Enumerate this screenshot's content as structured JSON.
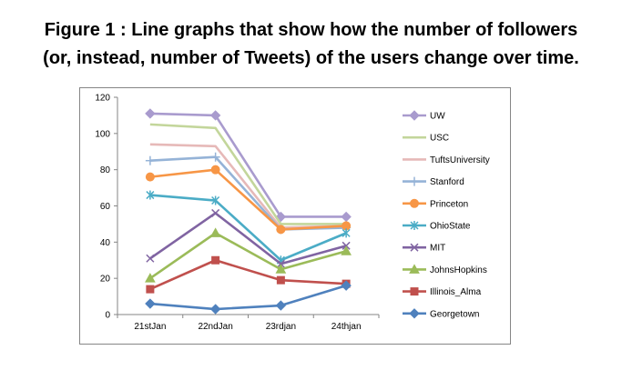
{
  "caption": {
    "line1": "Figure 1 : Line graphs that show how the number of followers",
    "line2": "(or, instead, number of Tweets) of the users change over time."
  },
  "chart_data": {
    "type": "line",
    "title": "",
    "xlabel": "",
    "ylabel": "",
    "categories": [
      "21stJan",
      "22ndJan",
      "23rdjan",
      "24thjan"
    ],
    "ylim": [
      0,
      120
    ],
    "yticks": [
      0,
      20,
      40,
      60,
      80,
      100,
      120
    ],
    "grid": false,
    "legend_position": "right",
    "series": [
      {
        "name": "UW",
        "values": [
          111,
          110,
          54,
          54
        ],
        "color": "#a99bce",
        "marker": "diamond"
      },
      {
        "name": "USC",
        "values": [
          105,
          103,
          50,
          50
        ],
        "color": "#c3d69b",
        "marker": "none"
      },
      {
        "name": "TuftsUniversity",
        "values": [
          94,
          93,
          48,
          49
        ],
        "color": "#e6b9b8",
        "marker": "none"
      },
      {
        "name": "Stanford",
        "values": [
          85,
          87,
          47,
          48
        ],
        "color": "#95b3d7",
        "marker": "plus"
      },
      {
        "name": "Princeton",
        "values": [
          76,
          80,
          47,
          49
        ],
        "color": "#f79646",
        "marker": "circle"
      },
      {
        "name": "OhioState",
        "values": [
          66,
          63,
          30,
          45
        ],
        "color": "#4bacc6",
        "marker": "star"
      },
      {
        "name": "MIT",
        "values": [
          31,
          56,
          28,
          38
        ],
        "color": "#8064a2",
        "marker": "x"
      },
      {
        "name": "JohnsHopkins",
        "values": [
          20,
          45,
          25,
          35
        ],
        "color": "#9bbb59",
        "marker": "triangle"
      },
      {
        "name": "Illinois_Alma",
        "values": [
          14,
          30,
          19,
          17
        ],
        "color": "#c0504d",
        "marker": "square"
      },
      {
        "name": "Georgetown",
        "values": [
          6,
          3,
          5,
          16
        ],
        "color": "#4f81bd",
        "marker": "diamond"
      }
    ]
  }
}
